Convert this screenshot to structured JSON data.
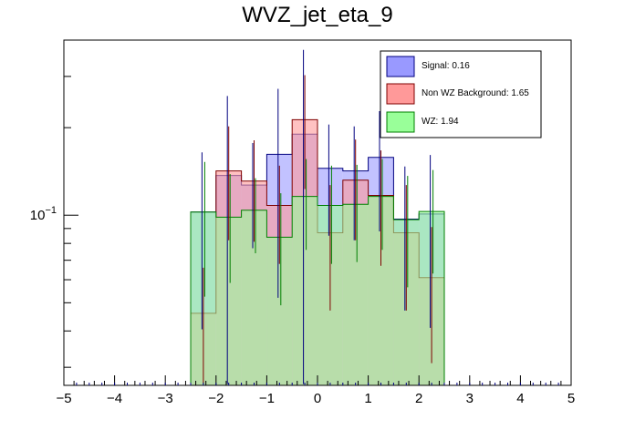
{
  "chart_data": {
    "type": "histogram",
    "title": "WVZ_jet_eta_9",
    "xlabel": "",
    "ylabel": "",
    "xlim": [
      -5,
      5
    ],
    "ylim_log": [
      0.026,
      0.4
    ],
    "yscale": "log",
    "x_ticks": [
      -5,
      -4,
      -3,
      -2,
      -1,
      0,
      1,
      2,
      3,
      4,
      5
    ],
    "x_tick_labels": [
      "−5",
      "−4",
      "−3",
      "−2",
      "−1",
      "0",
      "1",
      "2",
      "3",
      "4",
      "5"
    ],
    "y_tick_label": {
      "base": "10",
      "exp": "−1"
    },
    "y_major_ticks": [
      0.1
    ],
    "y_minor_ticks": [
      0.03,
      0.04,
      0.05,
      0.06,
      0.07,
      0.08,
      0.09,
      0.2,
      0.3
    ],
    "bin_edges": [
      -2.5,
      -2.25,
      -2.0,
      -1.75,
      -1.5,
      -1.25,
      -1.0,
      -0.75,
      -0.5,
      -0.25,
      0.0,
      0.25,
      0.5,
      0.75,
      1.0,
      1.25,
      1.5,
      1.75,
      2.0,
      2.25,
      2.5
    ],
    "bin_width": 0.25,
    "bins_drawn_width": 2,
    "series": [
      {
        "name": "Signal",
        "legend": "Signal: 0.16",
        "color": "#9999ff",
        "edge": "#00007f",
        "coarse_edges": [
          -2.5,
          -2.0,
          -1.5,
          -1.0,
          -0.5,
          0.0,
          0.5,
          1.0,
          1.5,
          2.0,
          2.5
        ],
        "values": [
          0.1025,
          0.137,
          0.127,
          0.162,
          0.19,
          0.145,
          0.142,
          0.158,
          0.097,
          0.101
        ],
        "errors": [
          0.062,
          0.12,
          0.05,
          0.11,
          0.18,
          0.06,
          0.06,
          0.07,
          0.05,
          0.06
        ]
      },
      {
        "name": "Non WZ Background",
        "legend": "Non WZ Background: 1.65",
        "color": "#ff9999",
        "edge": "#7f0000",
        "coarse_edges": [
          -2.5,
          -2.0,
          -1.5,
          -1.0,
          -0.5,
          0.0,
          0.5,
          1.0,
          1.5,
          2.0,
          2.5
        ],
        "values": [
          0.046,
          0.142,
          0.131,
          0.108,
          0.213,
          0.087,
          0.132,
          0.117,
          0.087,
          0.061
        ],
        "errors": [
          0.02,
          0.06,
          0.05,
          0.04,
          0.09,
          0.04,
          0.05,
          0.05,
          0.04,
          0.03
        ]
      },
      {
        "name": "WZ",
        "legend": "WZ: 1.94",
        "color": "#99ff99",
        "edge": "#007f00",
        "coarse_edges": [
          -2.5,
          -2.0,
          -1.5,
          -1.0,
          -0.5,
          0.0,
          0.5,
          1.0,
          1.5,
          2.0,
          2.5
        ],
        "values": [
          0.1025,
          0.0985,
          0.104,
          0.084,
          0.116,
          0.108,
          0.109,
          0.116,
          0.0965,
          0.103
        ],
        "errors": [
          0.05,
          0.04,
          0.03,
          0.035,
          0.04,
          0.04,
          0.04,
          0.04,
          0.04,
          0.04
        ]
      }
    ],
    "legend_position": "top-right"
  }
}
